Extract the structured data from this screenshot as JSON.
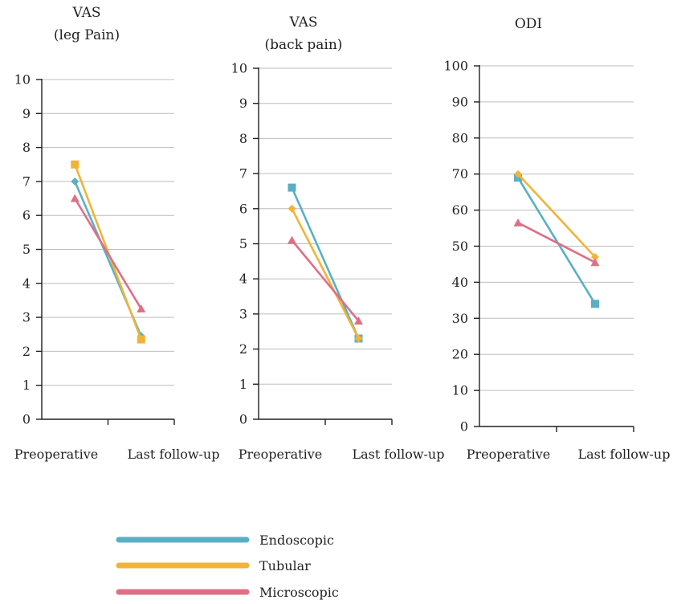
{
  "chart_data": [
    {
      "type": "line",
      "title_lines": [
        "VAS",
        "(leg Pain)"
      ],
      "categories": [
        "Preoperative",
        "Last follow-up"
      ],
      "ylim": [
        0,
        10
      ],
      "yticks": [
        0,
        1,
        2,
        3,
        4,
        5,
        6,
        7,
        8,
        9,
        10
      ],
      "grid": true,
      "series": [
        {
          "name": "Endoscopic",
          "values": [
            7.0,
            2.45
          ]
        },
        {
          "name": "Tubular",
          "values": [
            7.5,
            2.35
          ]
        },
        {
          "name": "Microscopic",
          "values": [
            6.5,
            3.25
          ]
        }
      ]
    },
    {
      "type": "line",
      "title_lines": [
        "VAS",
        "(back pain)"
      ],
      "categories": [
        "Preoperative",
        "Last follow-up"
      ],
      "ylim": [
        0,
        10
      ],
      "yticks": [
        0,
        1,
        2,
        3,
        4,
        5,
        6,
        7,
        8,
        9,
        10
      ],
      "grid": true,
      "series": [
        {
          "name": "Endoscopic",
          "values": [
            6.6,
            2.3
          ]
        },
        {
          "name": "Tubular",
          "values": [
            6.0,
            2.3
          ]
        },
        {
          "name": "Microscopic",
          "values": [
            5.1,
            2.8
          ]
        }
      ]
    },
    {
      "type": "line",
      "title_lines": [
        "ODI"
      ],
      "categories": [
        "Preoperative",
        "Last follow-up"
      ],
      "ylim": [
        0,
        100
      ],
      "yticks": [
        0,
        10,
        20,
        30,
        40,
        50,
        60,
        70,
        80,
        90,
        100
      ],
      "grid": true,
      "series": [
        {
          "name": "Endoscopic",
          "values": [
            69,
            34
          ]
        },
        {
          "name": "Tubular",
          "values": [
            70,
            47
          ]
        },
        {
          "name": "Microscopic",
          "values": [
            56.5,
            45.5
          ]
        }
      ]
    }
  ],
  "legend": {
    "placement": "bottom-center",
    "items": [
      {
        "label": "Endoscopic",
        "color": "#5bafc4"
      },
      {
        "label": "Tubular",
        "color": "#f0b43a"
      },
      {
        "label": "Microscopic",
        "color": "#de7086"
      }
    ]
  },
  "colors": {
    "Endoscopic": "#5bafc4",
    "Tubular": "#f0b43a",
    "Microscopic": "#de7086",
    "axis": "#231f20",
    "grid": "#bdbdbd"
  }
}
